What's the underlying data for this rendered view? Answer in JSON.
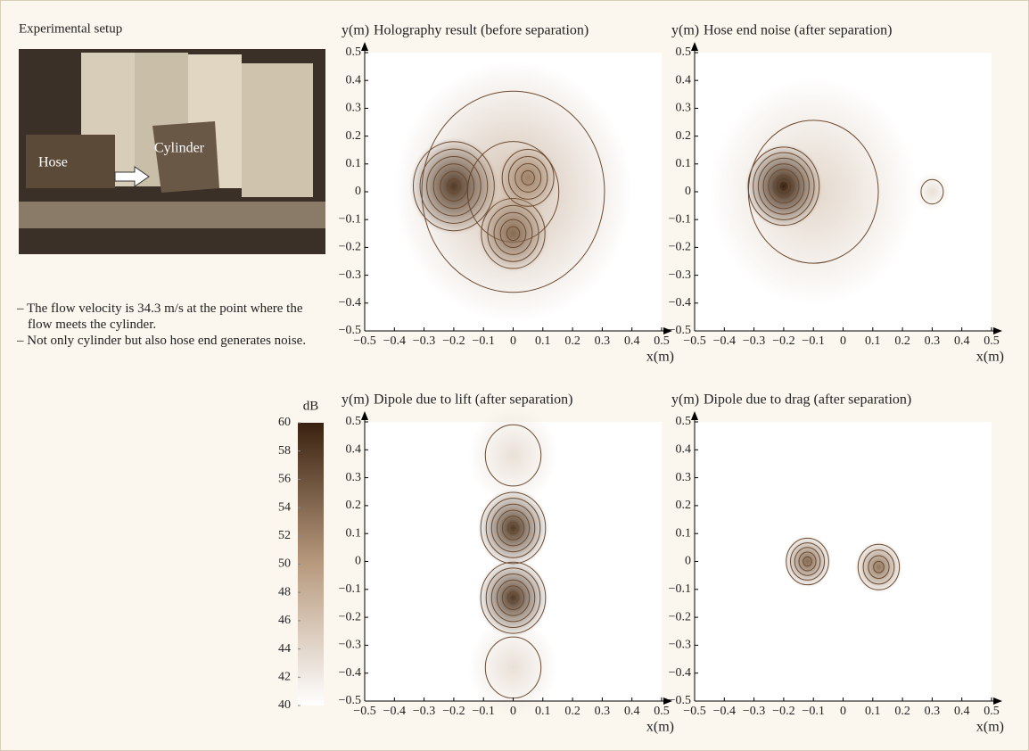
{
  "setup": {
    "title": "Experimental setup",
    "photo_labels": [
      "Hose",
      "Cylinder"
    ],
    "notes": [
      "– The flow velocity is 34.3 m/s at the point where the flow meets the cylinder.",
      "– Not only cylinder but also hose end generates noise."
    ]
  },
  "chart_data": [
    {
      "type": "colorbar",
      "label": "dB",
      "ylim": [
        40,
        60
      ],
      "yticks": [
        40,
        42,
        44,
        46,
        48,
        50,
        52,
        54,
        56,
        58,
        60
      ],
      "colors": [
        "#ffffff",
        "#b89a7e",
        "#3a2210"
      ]
    },
    {
      "type": "contour",
      "title": "Holography result (before separation)",
      "xlabel": "x(m)",
      "ylabel": "y(m)",
      "xlim": [
        -0.5,
        0.5
      ],
      "ylim": [
        -0.5,
        0.5
      ],
      "xticks": [
        {
          "value": -0.5,
          "label": "−0.5"
        },
        {
          "value": -0.4,
          "label": "−0.4"
        },
        {
          "value": -0.3,
          "label": "−0.3"
        },
        {
          "value": -0.2,
          "label": "−0.2"
        },
        {
          "value": -0.1,
          "label": "−0.1"
        },
        0,
        0.1,
        0.2,
        0.3,
        0.4,
        0.5
      ],
      "yticks": [
        {
          "value": -0.5,
          "label": "−0.5"
        },
        {
          "value": -0.4,
          "label": "−0.4"
        },
        {
          "value": -0.3,
          "label": "−0.3"
        },
        {
          "value": -0.2,
          "label": "−0.2"
        },
        {
          "value": -0.1,
          "label": "−0.1"
        },
        0,
        0.1,
        0.2,
        0.3,
        0.4,
        0.5
      ],
      "peaks": [
        {
          "x": 0,
          "y": 0,
          "level": 46,
          "spread": 0.4
        },
        {
          "x": -0.2,
          "y": 0.02,
          "level": 58,
          "spread": 0.15
        },
        {
          "x": 0,
          "y": -0.15,
          "level": 54,
          "spread": 0.12
        },
        {
          "x": 0.05,
          "y": 0.05,
          "level": 52,
          "spread": 0.1
        }
      ]
    },
    {
      "type": "contour",
      "title": "Hose end noise (after separation)",
      "xlabel": "x(m)",
      "ylabel": "y(m)",
      "xlim": [
        -0.5,
        0.5
      ],
      "ylim": [
        -0.5,
        0.5
      ],
      "xticks": [
        {
          "value": -0.5,
          "label": "−0.5"
        },
        {
          "value": -0.4,
          "label": "−0.4"
        },
        {
          "value": -0.3,
          "label": "−0.3"
        },
        {
          "value": -0.2,
          "label": "−0.2"
        },
        {
          "value": -0.1,
          "label": "−0.1"
        },
        0,
        0.1,
        0.2,
        0.3,
        0.4,
        0.5
      ],
      "yticks": [
        {
          "value": -0.5,
          "label": "−0.5"
        },
        {
          "value": -0.4,
          "label": "−0.4"
        },
        {
          "value": -0.3,
          "label": "−0.3"
        },
        {
          "value": -0.2,
          "label": "−0.2"
        },
        {
          "value": -0.1,
          "label": "−0.1"
        },
        0,
        0.1,
        0.2,
        0.3,
        0.4,
        0.5
      ],
      "peaks": [
        {
          "x": -0.1,
          "y": 0,
          "level": 44,
          "spread": 0.35
        },
        {
          "x": -0.2,
          "y": 0.02,
          "level": 60,
          "spread": 0.13
        },
        {
          "x": 0.3,
          "y": 0,
          "level": 43,
          "spread": 0.06
        }
      ]
    },
    {
      "type": "contour",
      "title": "Dipole due to lift (after separation)",
      "xlabel": "x(m)",
      "ylabel": "y(m)",
      "xlim": [
        -0.5,
        0.5
      ],
      "ylim": [
        -0.5,
        0.5
      ],
      "xticks": [
        {
          "value": -0.5,
          "label": "−0.5"
        },
        {
          "value": -0.4,
          "label": "−0.4"
        },
        {
          "value": -0.3,
          "label": "−0.3"
        },
        {
          "value": -0.2,
          "label": "−0.2"
        },
        {
          "value": -0.1,
          "label": "−0.1"
        },
        0,
        0.1,
        0.2,
        0.3,
        0.4,
        0.5
      ],
      "yticks": [
        {
          "value": -0.5,
          "label": "−0.5"
        },
        {
          "value": -0.4,
          "label": "−0.4"
        },
        {
          "value": -0.3,
          "label": "−0.3"
        },
        {
          "value": -0.2,
          "label": "−0.2"
        },
        {
          "value": -0.1,
          "label": "−0.1"
        },
        0,
        0.1,
        0.2,
        0.3,
        0.4,
        0.5
      ],
      "peaks": [
        {
          "x": 0,
          "y": 0.38,
          "level": 43,
          "spread": 0.15
        },
        {
          "x": 0,
          "y": -0.38,
          "level": 43,
          "spread": 0.15
        },
        {
          "x": 0,
          "y": 0.12,
          "level": 58,
          "spread": 0.12
        },
        {
          "x": 0,
          "y": -0.13,
          "level": 58,
          "spread": 0.12
        }
      ]
    },
    {
      "type": "contour",
      "title": "Dipole due to drag (after separation)",
      "xlabel": "x(m)",
      "ylabel": "y(m)",
      "xlim": [
        -0.5,
        0.5
      ],
      "ylim": [
        -0.5,
        0.5
      ],
      "xticks": [
        {
          "value": -0.5,
          "label": "−0.5"
        },
        {
          "value": -0.4,
          "label": "−0.4"
        },
        {
          "value": -0.3,
          "label": "−0.3"
        },
        {
          "value": -0.2,
          "label": "−0.2"
        },
        {
          "value": -0.1,
          "label": "−0.1"
        },
        0,
        0.1,
        0.2,
        0.3,
        0.4,
        0.5
      ],
      "yticks": [
        {
          "value": -0.5,
          "label": "−0.5"
        },
        {
          "value": -0.4,
          "label": "−0.4"
        },
        {
          "value": -0.3,
          "label": "−0.3"
        },
        {
          "value": -0.2,
          "label": "−0.2"
        },
        {
          "value": -0.1,
          "label": "−0.1"
        },
        0,
        0.1,
        0.2,
        0.3,
        0.4,
        0.5
      ],
      "peaks": [
        {
          "x": -0.12,
          "y": 0,
          "level": 54,
          "spread": 0.08
        },
        {
          "x": 0.12,
          "y": -0.02,
          "level": 53,
          "spread": 0.08
        }
      ]
    }
  ]
}
